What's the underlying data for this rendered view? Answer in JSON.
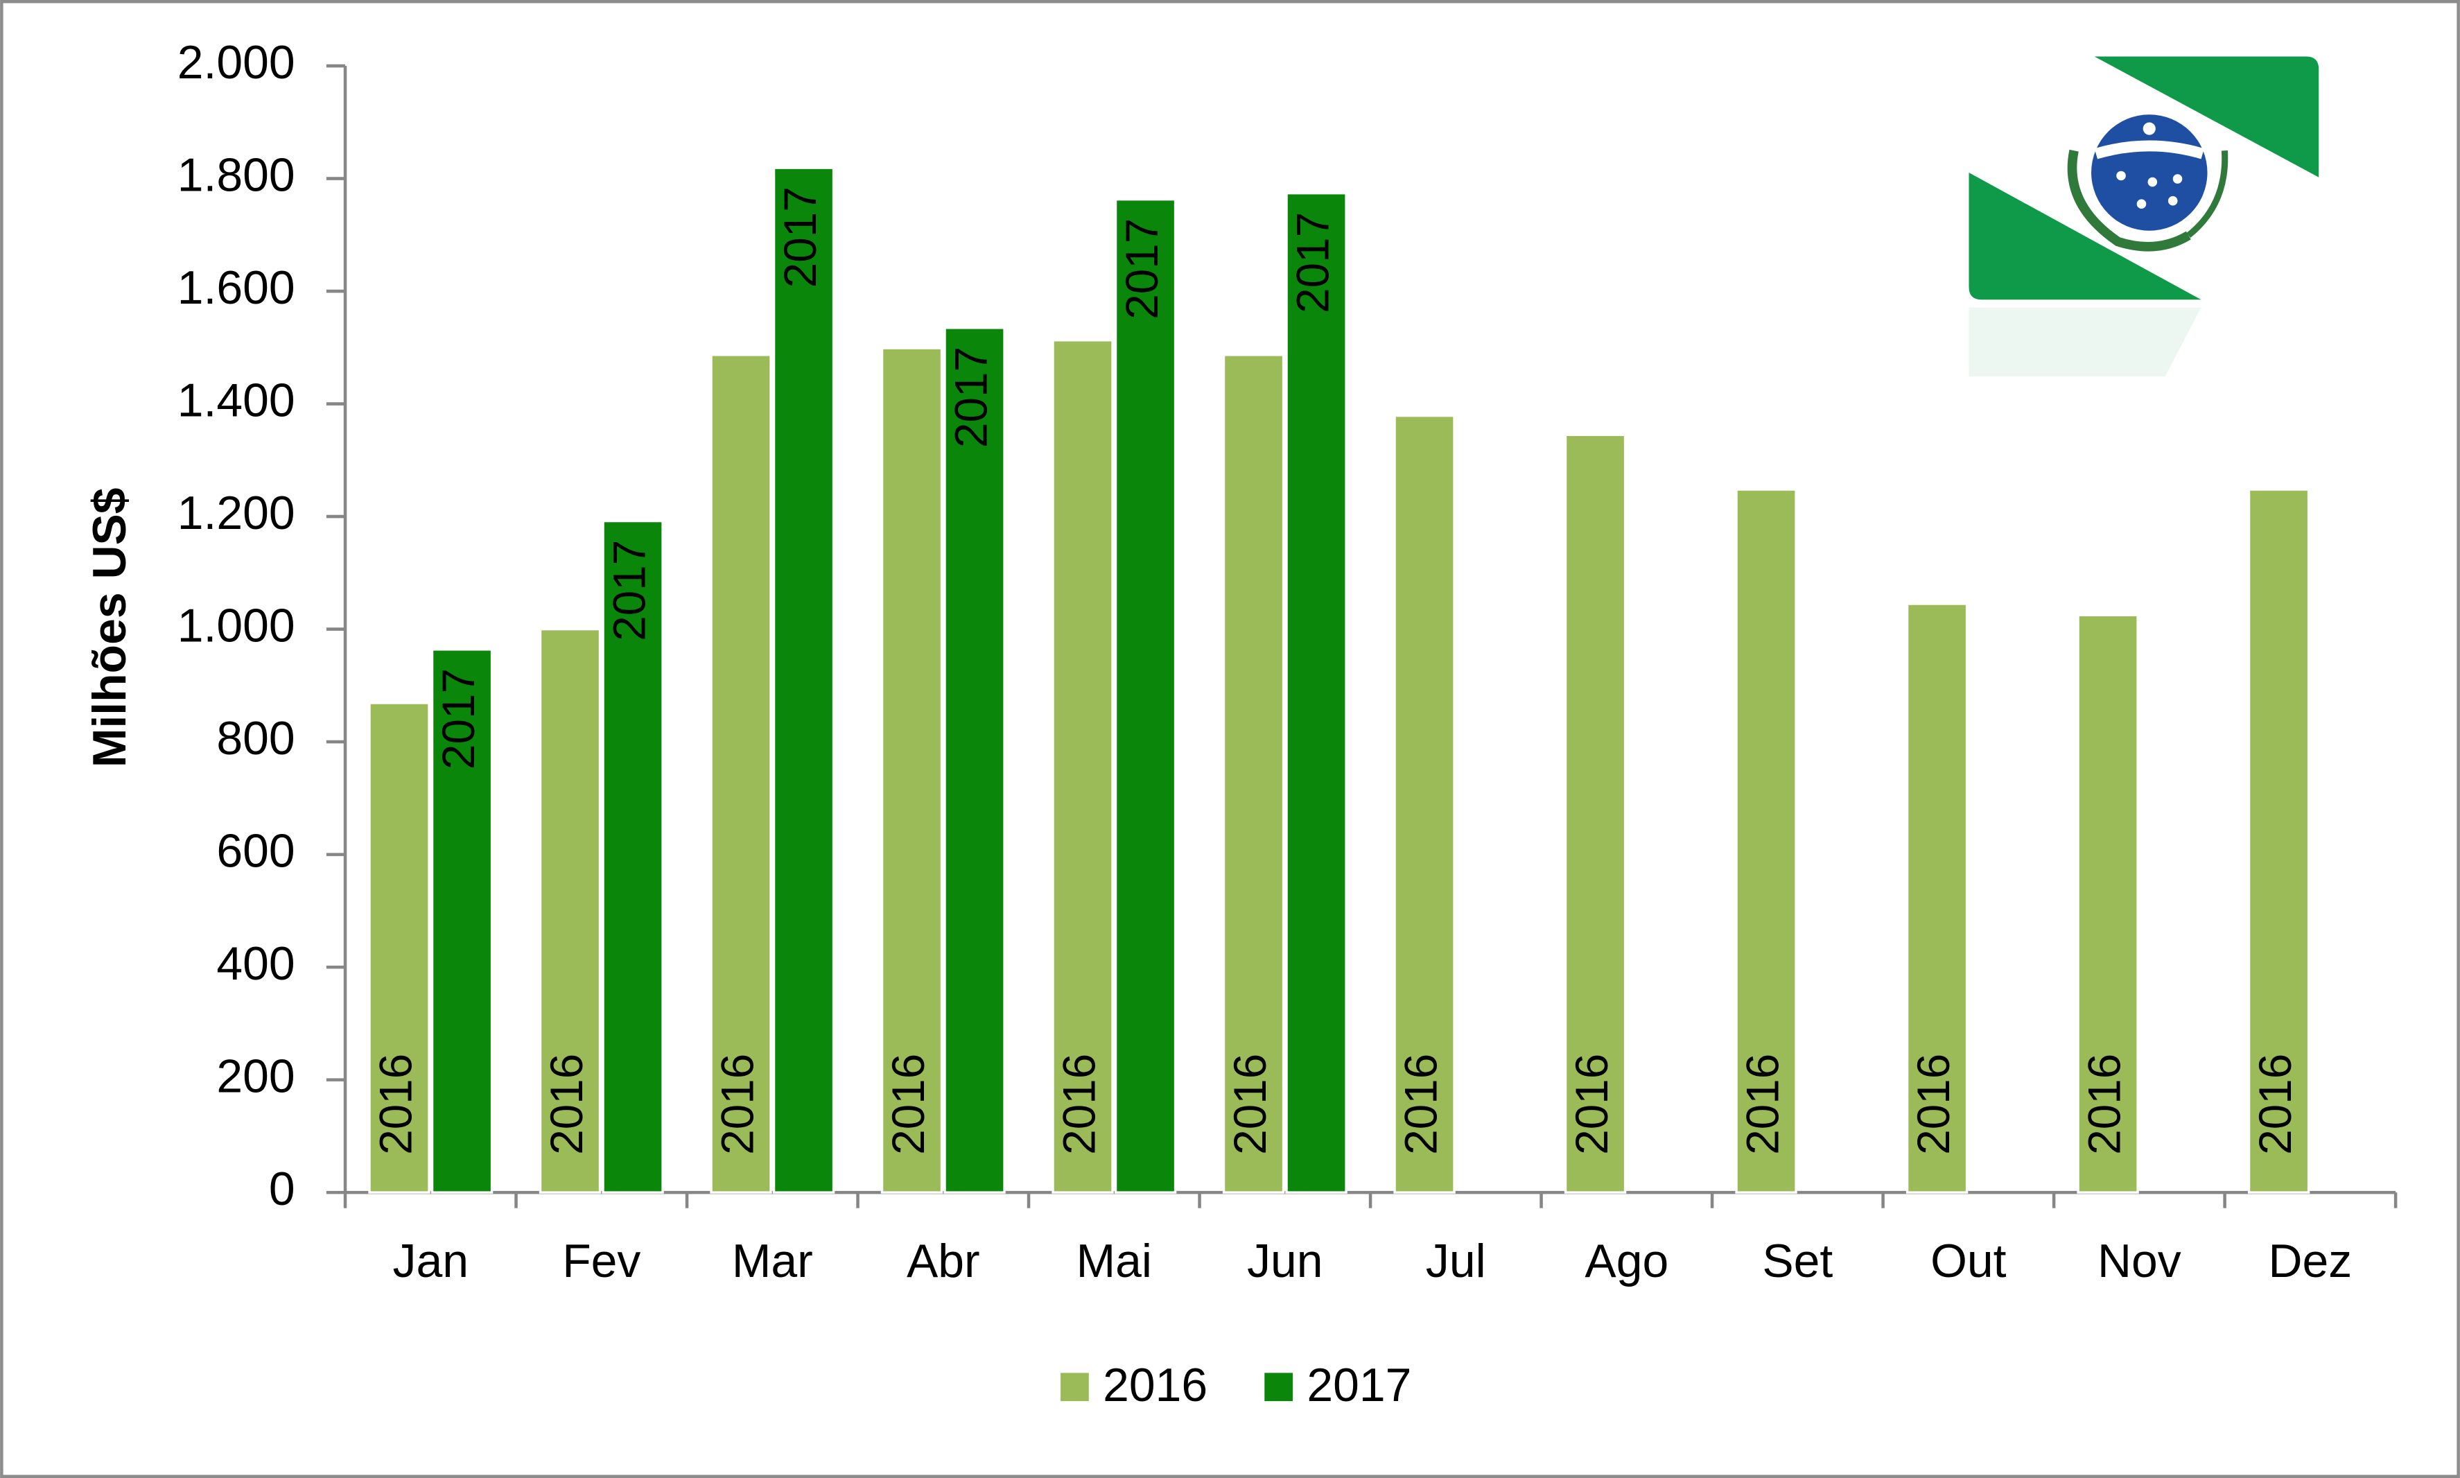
{
  "chart_data": {
    "type": "bar",
    "y_label": "Milhões US$",
    "categories": [
      "Jan",
      "Fev",
      "Mar",
      "Abr",
      "Mai",
      "Jun",
      "Jul",
      "Ago",
      "Set",
      "Out",
      "Nov",
      "Dez"
    ],
    "series": [
      {
        "name": "2016",
        "color": "#9bbb59",
        "values": [
          869,
          1000,
          1487,
          1499,
          1513,
          1487,
          1379,
          1345,
          1248,
          1045,
          1025,
          1248
        ]
      },
      {
        "name": "2017",
        "color": "#0a870a",
        "values": [
          964,
          1192,
          1819,
          1535,
          1763,
          1774,
          null,
          null,
          null,
          null,
          null,
          null
        ]
      }
    ],
    "ylim": [
      0,
      2000
    ],
    "yticks": [
      0,
      200,
      400,
      600,
      800,
      {
        "value": 1000,
        "label": "1.000"
      },
      {
        "value": 1200,
        "label": "1.200"
      },
      {
        "value": 1400,
        "label": "1.400"
      },
      {
        "value": 1600,
        "label": "1.600"
      },
      {
        "value": 1800,
        "label": "1.800"
      },
      {
        "value": 2000,
        "label": "2.000"
      }
    ],
    "legend": "bottom",
    "grid": false
  }
}
